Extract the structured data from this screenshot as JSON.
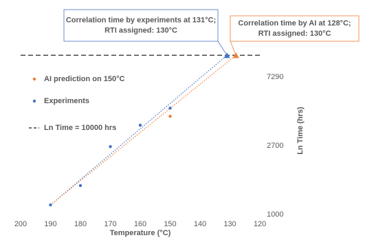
{
  "chart_data": {
    "type": "scatter",
    "x_label": "Temperature (°C)",
    "y_label": "Ln Time (hrs)",
    "xlim": [
      200,
      120
    ],
    "xticks": [
      200,
      190,
      180,
      170,
      160,
      150,
      140,
      130,
      120
    ],
    "ylim": [
      1000,
      12000
    ],
    "yticks": [
      1000,
      2700,
      7290
    ],
    "log_y": true,
    "legend": "left",
    "series": [
      {
        "name": "AI prediction on 150°C",
        "color": "#ed7d31",
        "x": [
          150
        ],
        "values": [
          4140
        ]
      },
      {
        "name": "Experiments",
        "color": "#4472c4",
        "x": [
          190,
          180,
          170,
          160,
          150
        ],
        "values": [
          1150,
          1520,
          2670,
          3640,
          4660
        ]
      }
    ],
    "reference_line": {
      "name": "Ln Time = 10000 hrs",
      "value": 10000,
      "color": "#404040"
    },
    "trendlines": [
      {
        "color": "#4472c4",
        "x": [
          190,
          131
        ],
        "values": [
          1150,
          10000
        ]
      },
      {
        "color": "#ed7d31",
        "x": [
          190,
          128
        ],
        "values": [
          1150,
          10000
        ]
      }
    ],
    "annotations": [
      {
        "lines": [
          "Correlation time by experiments at 131°C;",
          "RTI assigned: 130°C"
        ],
        "color": "#4472c4",
        "x": 131,
        "value": 10000
      },
      {
        "lines": [
          "Correlation time by AI at 128°C;",
          "RTI assigned: 130°C"
        ],
        "color": "#ed7d31",
        "x": 128,
        "value": 10000
      }
    ]
  }
}
